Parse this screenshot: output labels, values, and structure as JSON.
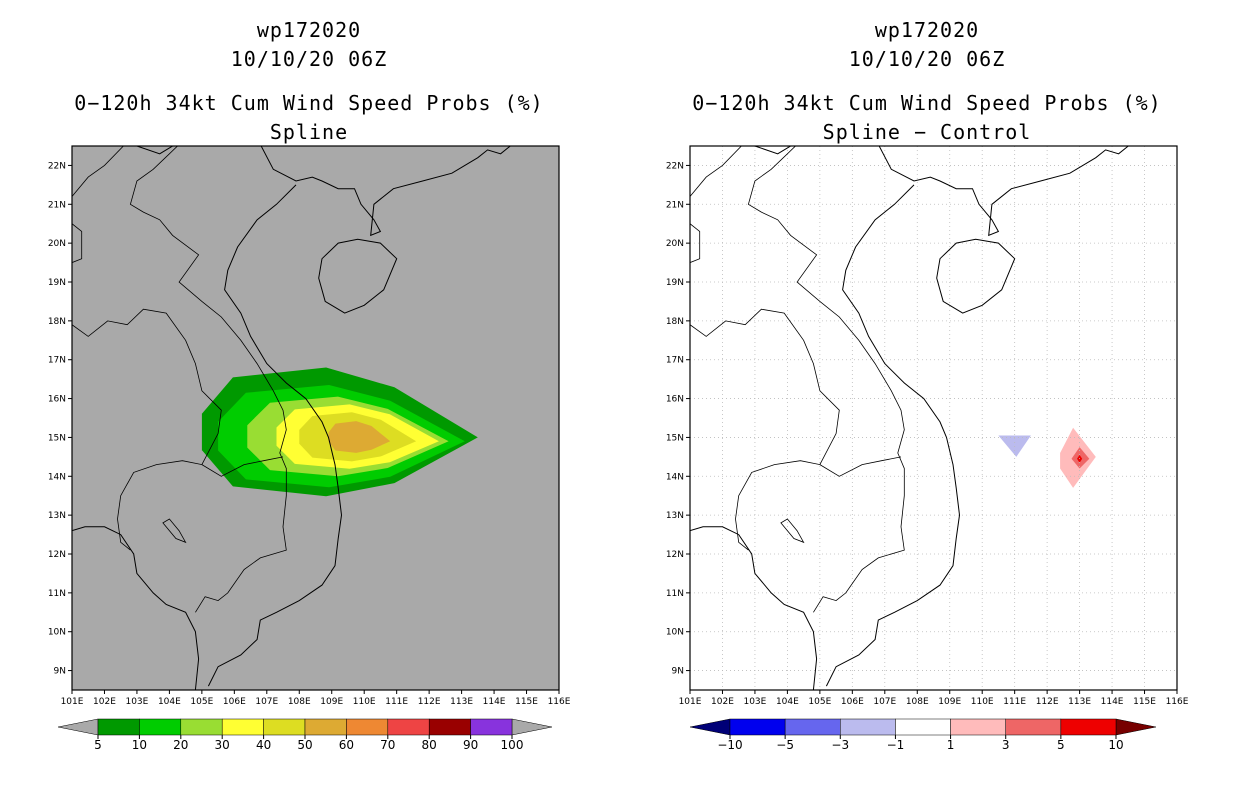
{
  "panels": [
    {
      "id": "left",
      "storm_id": "wp172020",
      "datetime": "10/10/20 06Z",
      "product": "0−120h 34kt Cum Wind Speed Probs (%)",
      "subtitle": "Spline",
      "background": "#a9a9a9",
      "colorbar": {
        "colors": [
          "#009900",
          "#00cc00",
          "#99dd33",
          "#ffff33",
          "#dddd22",
          "#ddaa33",
          "#ee8833",
          "#ee4444",
          "#990000",
          "#8833dd"
        ],
        "under_color": "#a9a9a9",
        "over_color": "#a9a9a9",
        "labels": [
          "5",
          "10",
          "20",
          "30",
          "40",
          "50",
          "60",
          "70",
          "80",
          "90",
          "100"
        ]
      }
    },
    {
      "id": "right",
      "storm_id": "wp172020",
      "datetime": "10/10/20 06Z",
      "product": "0−120h 34kt Cum Wind Speed Probs (%)",
      "subtitle": "Spline − Control",
      "background": "#ffffff",
      "colorbar": {
        "colors": [
          "#0000ee",
          "#6666ee",
          "#bbbbee",
          "#ffffff",
          "#ffbbbb",
          "#ee6666",
          "#ee0000"
        ],
        "under_color": "#000077",
        "over_color": "#770000",
        "labels": [
          "−10",
          "−5",
          "−3",
          "−1",
          "1",
          "3",
          "5",
          "10"
        ]
      }
    }
  ],
  "axes": {
    "lon_labels": [
      "101E",
      "102E",
      "103E",
      "104E",
      "105E",
      "106E",
      "107E",
      "108E",
      "109E",
      "110E",
      "111E",
      "112E",
      "113E",
      "114E",
      "115E",
      "116E"
    ],
    "lat_labels": [
      "22N",
      "21N",
      "20N",
      "19N",
      "18N",
      "17N",
      "16N",
      "15N",
      "14N",
      "13N",
      "12N",
      "11N",
      "10N",
      "9N"
    ]
  },
  "chart_data": [
    {
      "type": "heatmap",
      "title": "0−120h 34kt Cum Wind Speed Probs (%)",
      "subtitle": "Spline",
      "units": "%",
      "lon_range": [
        101,
        116
      ],
      "lat_range": [
        8.5,
        22.5
      ],
      "levels": [
        5,
        10,
        20,
        30,
        40,
        50,
        60,
        70,
        80,
        90,
        100
      ],
      "peak_region": {
        "lon": 110,
        "lat": 15,
        "level_range": [
          50,
          60
        ]
      }
    },
    {
      "type": "heatmap",
      "title": "0−120h 34kt Cum Wind Speed Probs (%)",
      "subtitle": "Spline − Control",
      "units": "%",
      "lon_range": [
        101,
        116
      ],
      "lat_range": [
        8.5,
        22.5
      ],
      "levels": [
        -10,
        -5,
        -3,
        -1,
        1,
        3,
        5,
        10
      ],
      "features": [
        {
          "sign": "negative",
          "lon": 111.1,
          "lat": 14.8,
          "level_range": [
            -3,
            -1
          ]
        },
        {
          "sign": "positive",
          "lon": 113.0,
          "lat": 14.5,
          "level_range": [
            1,
            5
          ]
        }
      ]
    }
  ]
}
